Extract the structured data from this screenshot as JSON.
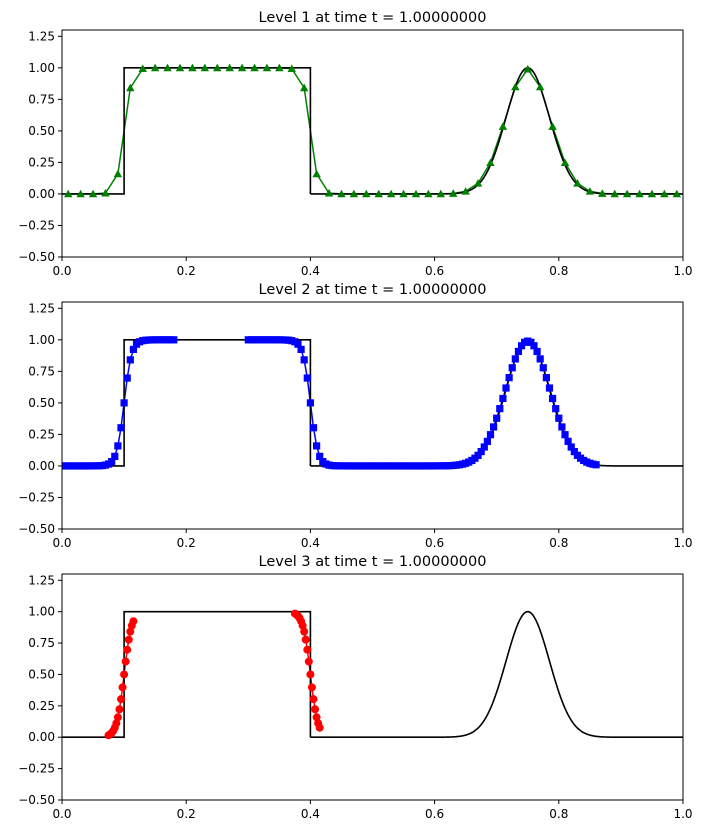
{
  "chart_data": [
    {
      "type": "line",
      "title": "Level 1 at time t =     1.00000000",
      "xlim": [
        0,
        1
      ],
      "ylim": [
        -0.5,
        1.3
      ],
      "xticks": [
        "0.0",
        "0.2",
        "0.4",
        "0.6",
        "0.8",
        "1.0"
      ],
      "yticks": [
        "−0.50",
        "−0.25",
        "0.00",
        "0.25",
        "0.50",
        "0.75",
        "1.00",
        "1.25"
      ],
      "grid": false,
      "exact_solution": {
        "color": "#000000",
        "step": [
          0.1,
          0.4
        ],
        "gaussian_center": 0.75,
        "gaussian_width": 0.035
      },
      "series": {
        "color": "#008000",
        "marker": "triangle",
        "x_range": [
          0.01,
          0.99
        ],
        "dx": 0.02
      }
    },
    {
      "type": "line",
      "title": "Level 2 at time t =     1.00000000",
      "xlim": [
        0,
        1
      ],
      "ylim": [
        -0.5,
        1.3
      ],
      "xticks": [
        "0.0",
        "0.2",
        "0.4",
        "0.6",
        "0.8",
        "1.0"
      ],
      "yticks": [
        "−0.50",
        "−0.25",
        "0.00",
        "0.25",
        "0.50",
        "0.75",
        "1.00",
        "1.25"
      ],
      "grid": false,
      "exact_solution": {
        "color": "#000000",
        "step": [
          0.1,
          0.4
        ],
        "gaussian_center": 0.75,
        "gaussian_width": 0.035
      },
      "series": {
        "color": "#0000ff",
        "marker": "square",
        "segments": [
          [
            0.0,
            0.18
          ],
          [
            0.3,
            0.86
          ]
        ],
        "dx": 0.005
      }
    },
    {
      "type": "line",
      "title": "Level 3 at time t =     1.00000000",
      "xlim": [
        0,
        1
      ],
      "ylim": [
        -0.5,
        1.3
      ],
      "xticks": [
        "0.0",
        "0.2",
        "0.4",
        "0.6",
        "0.8",
        "1.0"
      ],
      "yticks": [
        "−0.50",
        "−0.25",
        "0.00",
        "0.25",
        "0.50",
        "0.75",
        "1.00",
        "1.25"
      ],
      "grid": false,
      "exact_solution": {
        "color": "#000000",
        "step": [
          0.1,
          0.4
        ],
        "gaussian_center": 0.75,
        "gaussian_width": 0.035
      },
      "series": {
        "color": "#ff0000",
        "marker": "circle",
        "segments": [
          [
            0.075,
            0.115
          ],
          [
            0.375,
            0.415
          ]
        ],
        "dx": 0.0025
      }
    }
  ]
}
